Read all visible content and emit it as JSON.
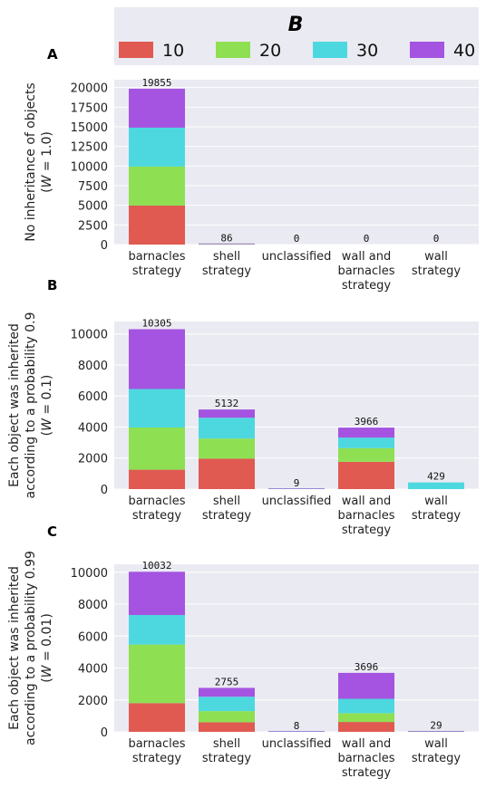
{
  "legend": {
    "title": "B",
    "items": [
      {
        "label": "10",
        "color": "#e05a52"
      },
      {
        "label": "20",
        "color": "#8ee052"
      },
      {
        "label": "30",
        "color": "#4dd8e0"
      },
      {
        "label": "40",
        "color": "#a454e0"
      }
    ]
  },
  "chart_data": [
    {
      "type": "bar",
      "panel": "A",
      "ylabel_lines": [
        "No inheritance of objects",
        "(W = 1.0)"
      ],
      "categories": [
        [
          "barnacles",
          "strategy"
        ],
        [
          "shell",
          "strategy"
        ],
        [
          "unclassified"
        ],
        [
          "wall and",
          "barnacles",
          "strategy"
        ],
        [
          "wall",
          "strategy"
        ]
      ],
      "totals": [
        19855,
        86,
        0,
        0,
        0
      ],
      "series": [
        {
          "name": "10",
          "values": [
            4964,
            22,
            0,
            0,
            0
          ]
        },
        {
          "name": "20",
          "values": [
            4964,
            21,
            0,
            0,
            0
          ]
        },
        {
          "name": "30",
          "values": [
            4964,
            22,
            0,
            0,
            0
          ]
        },
        {
          "name": "40",
          "values": [
            4963,
            21,
            0,
            0,
            0
          ]
        }
      ],
      "ylim": [
        0,
        21000
      ],
      "yticks": [
        0,
        2500,
        5000,
        7500,
        10000,
        12500,
        15000,
        17500,
        20000
      ],
      "stacked": true
    },
    {
      "type": "bar",
      "panel": "B",
      "ylabel_lines": [
        "Each object was inherited",
        "according to a probability 0.9",
        "(W = 0.1)"
      ],
      "categories": [
        [
          "barnacles",
          "strategy"
        ],
        [
          "shell",
          "strategy"
        ],
        [
          "unclassified"
        ],
        [
          "wall and",
          "barnacles",
          "strategy"
        ],
        [
          "wall",
          "strategy"
        ]
      ],
      "totals": [
        10305,
        5132,
        9,
        3966,
        429
      ],
      "series": [
        {
          "name": "10",
          "values": [
            1250,
            1960,
            3,
            1760,
            0
          ]
        },
        {
          "name": "20",
          "values": [
            2720,
            1300,
            2,
            880,
            0
          ]
        },
        {
          "name": "30",
          "values": [
            2480,
            1340,
            2,
            680,
            429
          ]
        },
        {
          "name": "40",
          "values": [
            3855,
            532,
            2,
            646,
            0
          ]
        }
      ],
      "ylim": [
        0,
        10800
      ],
      "yticks": [
        0,
        2000,
        4000,
        6000,
        8000,
        10000
      ],
      "stacked": true
    },
    {
      "type": "bar",
      "panel": "C",
      "ylabel_lines": [
        "Each object was inherited",
        "according to a probability 0.99",
        "(W = 0.01)"
      ],
      "categories": [
        [
          "barnacles",
          "strategy"
        ],
        [
          "shell",
          "strategy"
        ],
        [
          "unclassified"
        ],
        [
          "wall and",
          "barnacles",
          "strategy"
        ],
        [
          "wall",
          "strategy"
        ]
      ],
      "totals": [
        10032,
        2755,
        8,
        3696,
        29
      ],
      "series": [
        {
          "name": "10",
          "values": [
            1800,
            600,
            2,
            620,
            7
          ]
        },
        {
          "name": "20",
          "values": [
            3670,
            700,
            2,
            550,
            7
          ]
        },
        {
          "name": "30",
          "values": [
            1850,
            900,
            2,
            900,
            8
          ]
        },
        {
          "name": "40",
          "values": [
            2712,
            555,
            2,
            1626,
            7
          ]
        }
      ],
      "ylim": [
        0,
        10500
      ],
      "yticks": [
        0,
        2000,
        4000,
        6000,
        8000,
        10000
      ],
      "stacked": true
    }
  ]
}
